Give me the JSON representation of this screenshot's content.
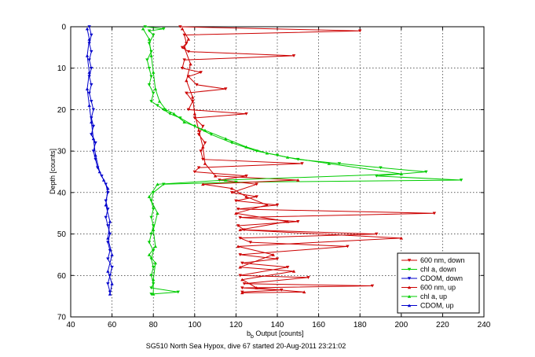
{
  "chart_data": {
    "type": "line",
    "xlabel_main": "b",
    "xlabel_sub": "b",
    "xlabel_rest": " Output [counts]",
    "ylabel": "Depth [counts]",
    "caption": "SG510 North Sea Hypox, dive 67 started 20-Aug-2011 23:21:02",
    "xlim": [
      40,
      240
    ],
    "ylim": [
      0,
      70
    ],
    "y_reversed": true,
    "grid": true,
    "legend_position": "bottom-right",
    "xticks": [
      "40",
      "60",
      "80",
      "100",
      "120",
      "140",
      "160",
      "180",
      "200",
      "220",
      "240"
    ],
    "yticks": [
      "0",
      "10",
      "20",
      "30",
      "40",
      "50",
      "60",
      "70"
    ],
    "series": [
      {
        "name": "600 nm, down",
        "color": "#cc0000",
        "marker": "down",
        "points": [
          [
            93,
            0
          ],
          [
            180,
            1
          ],
          [
            95,
            2
          ],
          [
            96,
            4
          ],
          [
            94,
            5
          ],
          [
            97,
            6
          ],
          [
            148,
            7
          ],
          [
            95,
            8
          ],
          [
            94,
            10
          ],
          [
            103,
            11
          ],
          [
            97,
            12
          ],
          [
            101,
            14
          ],
          [
            115,
            15
          ],
          [
            96,
            16
          ],
          [
            99,
            18
          ],
          [
            97,
            20
          ],
          [
            125,
            21
          ],
          [
            100,
            22
          ],
          [
            104,
            24
          ],
          [
            102,
            26
          ],
          [
            105,
            28
          ],
          [
            103,
            30
          ],
          [
            104,
            32
          ],
          [
            152,
            33
          ],
          [
            102,
            34
          ],
          [
            100,
            35
          ],
          [
            125,
            36
          ],
          [
            112,
            37
          ],
          [
            130,
            38
          ],
          [
            118,
            40
          ],
          [
            130,
            41
          ],
          [
            120,
            42
          ],
          [
            140,
            43
          ],
          [
            121,
            44
          ],
          [
            216,
            45
          ],
          [
            122,
            46
          ],
          [
            150,
            47
          ],
          [
            121,
            48
          ],
          [
            124,
            49
          ],
          [
            188,
            50
          ],
          [
            122,
            51
          ],
          [
            127,
            52
          ],
          [
            174,
            53
          ],
          [
            122,
            55
          ],
          [
            140,
            56
          ],
          [
            123,
            57
          ],
          [
            145,
            58
          ],
          [
            122,
            60
          ],
          [
            155,
            60.5
          ],
          [
            124,
            62
          ],
          [
            186,
            62.5
          ],
          [
            123,
            63
          ],
          [
            142,
            63.5
          ],
          [
            123,
            64
          ]
        ]
      },
      {
        "name": "chl a, down",
        "color": "#00cc00",
        "marker": "down",
        "points": [
          [
            76,
            0
          ],
          [
            85,
            0.5
          ],
          [
            78,
            1
          ],
          [
            80,
            2
          ],
          [
            78,
            4
          ],
          [
            79,
            6
          ],
          [
            77,
            8
          ],
          [
            78,
            10
          ],
          [
            79,
            12
          ],
          [
            78,
            14
          ],
          [
            80,
            16
          ],
          [
            79,
            18
          ],
          [
            82,
            19
          ],
          [
            85,
            20
          ],
          [
            88,
            21
          ],
          [
            93,
            22
          ],
          [
            100,
            24
          ],
          [
            108,
            26
          ],
          [
            118,
            28
          ],
          [
            130,
            30
          ],
          [
            140,
            31
          ],
          [
            150,
            32
          ],
          [
            170,
            33
          ],
          [
            190,
            34
          ],
          [
            212,
            35
          ],
          [
            188,
            36
          ],
          [
            229,
            37
          ],
          [
            120,
            37.5
          ],
          [
            85,
            38
          ],
          [
            80,
            40
          ],
          [
            79,
            42
          ],
          [
            80,
            44
          ],
          [
            79,
            46
          ],
          [
            80,
            48
          ],
          [
            79,
            50
          ],
          [
            78,
            52
          ],
          [
            80,
            54
          ],
          [
            79,
            56
          ],
          [
            80,
            58
          ],
          [
            79,
            60
          ],
          [
            80,
            62
          ],
          [
            79,
            63
          ],
          [
            92,
            64
          ],
          [
            79,
            64.5
          ]
        ]
      },
      {
        "name": "CDOM, down",
        "color": "#0000cc",
        "marker": "down",
        "points": [
          [
            49,
            0
          ],
          [
            50,
            2
          ],
          [
            49,
            4
          ],
          [
            50,
            6
          ],
          [
            49,
            8
          ],
          [
            50,
            10
          ],
          [
            49,
            12
          ],
          [
            50,
            14
          ],
          [
            49,
            16
          ],
          [
            50,
            18
          ],
          [
            51,
            20
          ],
          [
            50,
            22
          ],
          [
            51,
            24
          ],
          [
            50,
            26
          ],
          [
            52,
            28
          ],
          [
            51,
            30
          ],
          [
            52,
            32
          ],
          [
            53,
            34
          ],
          [
            55,
            36
          ],
          [
            57,
            38
          ],
          [
            58,
            40
          ],
          [
            57,
            42
          ],
          [
            58,
            44
          ],
          [
            57,
            46
          ],
          [
            58,
            48
          ],
          [
            59,
            50
          ],
          [
            58,
            52
          ],
          [
            59,
            54
          ],
          [
            58,
            56
          ],
          [
            60,
            58
          ],
          [
            59,
            60
          ],
          [
            58,
            62
          ],
          [
            59,
            64
          ]
        ]
      },
      {
        "name": "600 nm, up",
        "color": "#cc0000",
        "marker": "up",
        "points": [
          [
            94,
            0.5
          ],
          [
            97,
            3
          ],
          [
            95,
            5
          ],
          [
            98,
            9
          ],
          [
            96,
            13
          ],
          [
            99,
            17
          ],
          [
            100,
            21
          ],
          [
            102,
            25
          ],
          [
            104,
            29
          ],
          [
            105,
            33
          ],
          [
            110,
            36
          ],
          [
            150,
            37
          ],
          [
            104,
            38
          ],
          [
            118,
            39
          ],
          [
            125,
            41
          ],
          [
            135,
            43
          ],
          [
            120,
            45
          ],
          [
            145,
            47
          ],
          [
            122,
            49
          ],
          [
            200,
            51
          ],
          [
            121,
            53
          ],
          [
            138,
            55
          ],
          [
            122,
            58
          ],
          [
            148,
            59
          ],
          [
            123,
            61
          ],
          [
            130,
            63
          ],
          [
            153,
            64
          ],
          [
            123,
            64.2
          ]
        ]
      },
      {
        "name": "chl a, up",
        "color": "#00cc00",
        "marker": "up",
        "points": [
          [
            75,
            0.5
          ],
          [
            78,
            3
          ],
          [
            79,
            7
          ],
          [
            80,
            11
          ],
          [
            81,
            15
          ],
          [
            83,
            18
          ],
          [
            86,
            20
          ],
          [
            90,
            21
          ],
          [
            95,
            23
          ],
          [
            105,
            25
          ],
          [
            115,
            27
          ],
          [
            125,
            29
          ],
          [
            135,
            30.5
          ],
          [
            145,
            31.5
          ],
          [
            165,
            33
          ],
          [
            200,
            35.5
          ],
          [
            115,
            37
          ],
          [
            82,
            38
          ],
          [
            78,
            41
          ],
          [
            82,
            45
          ],
          [
            80,
            49
          ],
          [
            81,
            53
          ],
          [
            78,
            55
          ],
          [
            81,
            57
          ],
          [
            80,
            61
          ],
          [
            80,
            64.5
          ]
        ]
      },
      {
        "name": "CDOM, up",
        "color": "#0000cc",
        "marker": "up",
        "points": [
          [
            48,
            0.5
          ],
          [
            49,
            3
          ],
          [
            48,
            7
          ],
          [
            49,
            11
          ],
          [
            48,
            15
          ],
          [
            49,
            19
          ],
          [
            50,
            23
          ],
          [
            51,
            27
          ],
          [
            52,
            31
          ],
          [
            54,
            35
          ],
          [
            56,
            37
          ],
          [
            58,
            39
          ],
          [
            57,
            43
          ],
          [
            59,
            47
          ],
          [
            58,
            51
          ],
          [
            60,
            55
          ],
          [
            58,
            59
          ],
          [
            60,
            62
          ],
          [
            59,
            64.5
          ]
        ]
      }
    ]
  }
}
